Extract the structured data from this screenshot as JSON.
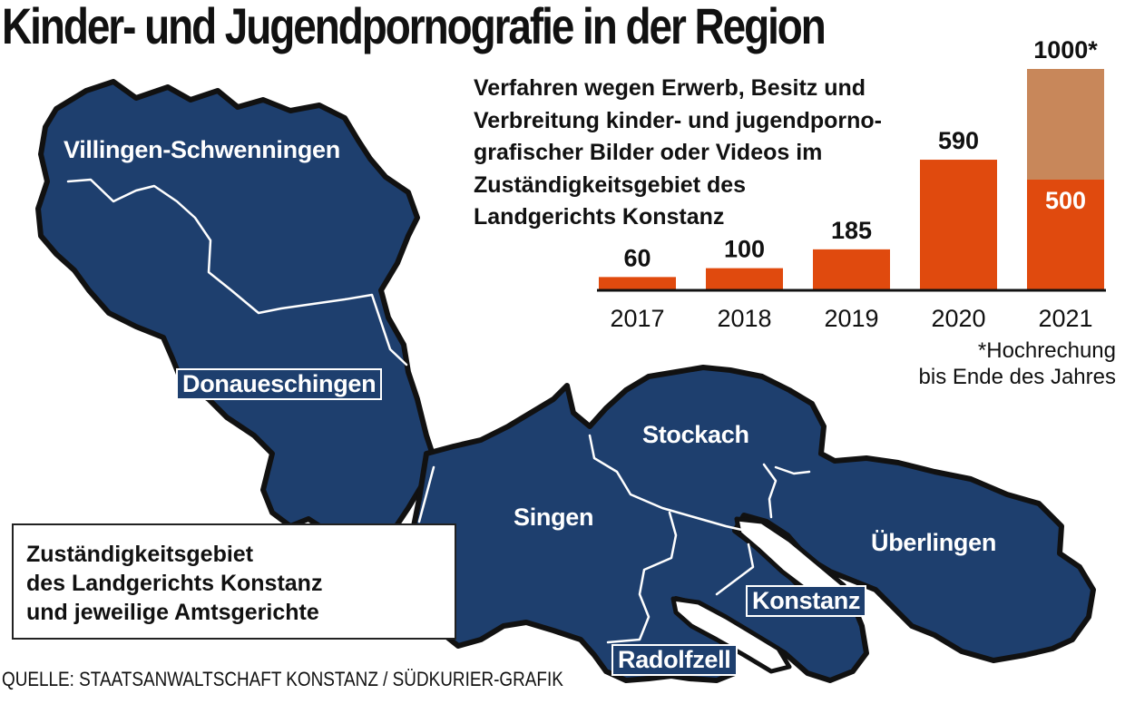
{
  "title": "Kinder- und Jugendpornografie in der Region",
  "colors": {
    "map_fill": "#1e3f6e",
    "map_outline": "#111111",
    "border_lines": "#ffffff",
    "bar_actual": "#e04a0e",
    "bar_projection": "#c8875a"
  },
  "map": {
    "districts": [
      "Villingen-Schwenningen",
      "Donaueschingen",
      "Stockach",
      "Singen",
      "Überlingen",
      "Konstanz",
      "Radolfzell"
    ],
    "legend": "Zuständigkeitsgebiet\ndes Landgerichts Konstanz\nund jeweilige Amtsgerichte"
  },
  "chart_data": {
    "type": "bar",
    "title": "Verfahren wegen Erwerb, Besitz und Verbreitung kinder- und jugendporno-grafischer Bilder oder Videos im Zuständigkeitsgebiet des Landgerichts Konstanz",
    "categories": [
      "2017",
      "2018",
      "2019",
      "2020",
      "2021"
    ],
    "values": [
      60,
      100,
      185,
      590,
      500
    ],
    "projection": {
      "category": "2021",
      "value": 1000
    },
    "value_labels": [
      "60",
      "100",
      "185",
      "590",
      "500"
    ],
    "projection_label": "1000*",
    "ylim": [
      0,
      1000
    ],
    "grid": false,
    "footnote": "*Hochrechung\nbis Ende des Jahres"
  },
  "chart_desc_lines": [
    "Verfahren wegen Erwerb, Besitz und",
    "Verbreitung kinder- und jugendporno-",
    "grafischer Bilder oder Videos im",
    "Zuständigkeitsgebiet des",
    "Landgerichts Konstanz"
  ],
  "source": "QUELLE: STAATSANWALTSCHAFT KONSTANZ / SÜDKURIER-GRAFIK"
}
